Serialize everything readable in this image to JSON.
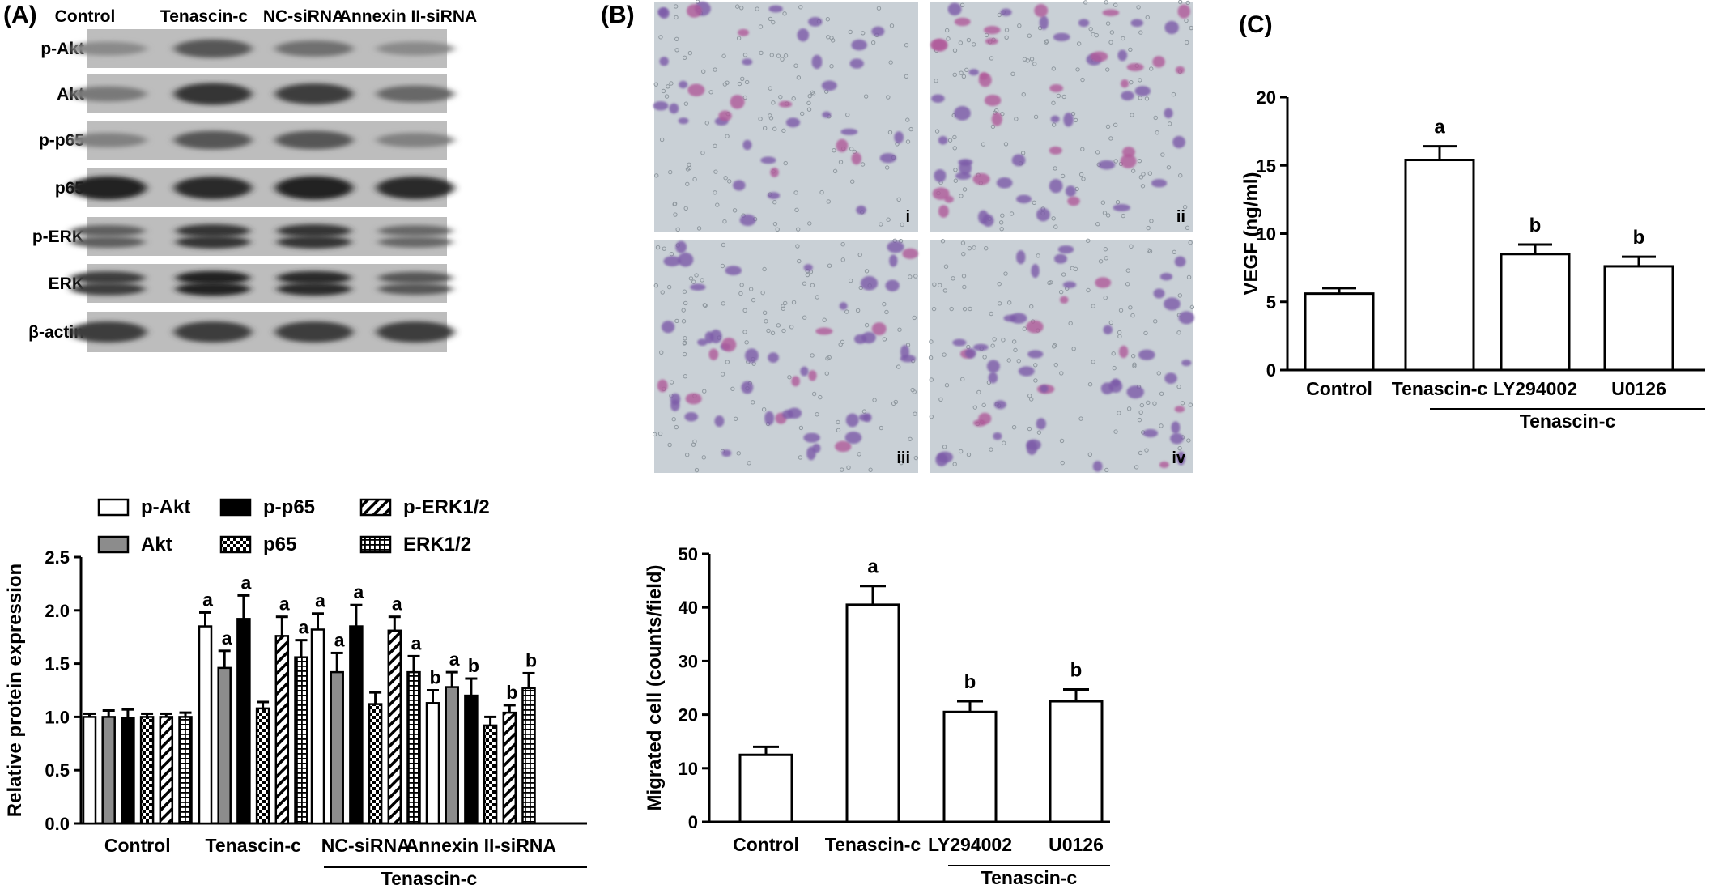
{
  "panels": {
    "A": "(A)",
    "B": "(B)",
    "C": "(C)"
  },
  "blot": {
    "lanes": [
      "Control",
      "Tenascin-c",
      "NC-siRNA",
      "Annexin II-siRNA"
    ],
    "rows": [
      {
        "label": "p-Akt",
        "intensity": [
          0.25,
          0.55,
          0.4,
          0.25
        ]
      },
      {
        "label": "Akt",
        "intensity": [
          0.35,
          0.75,
          0.7,
          0.45
        ]
      },
      {
        "label": "p-p65",
        "intensity": [
          0.3,
          0.55,
          0.55,
          0.3
        ]
      },
      {
        "label": "p65",
        "intensity": [
          0.85,
          0.8,
          0.85,
          0.8
        ]
      },
      {
        "label": "p-ERK",
        "intensity": [
          0.5,
          0.75,
          0.75,
          0.45
        ]
      },
      {
        "label": "ERK",
        "intensity": [
          0.7,
          0.85,
          0.8,
          0.55
        ]
      },
      {
        "label": "β-actin",
        "intensity": [
          0.7,
          0.7,
          0.7,
          0.7
        ]
      }
    ]
  },
  "micrographs": {
    "labels": [
      "i",
      "ii",
      "iii",
      "iv"
    ],
    "bg_color": "#c9d0d6",
    "stain_color": "#7c5aa8",
    "pink_color": "#b05a9a"
  },
  "chart_data": [
    {
      "id": "A-bar",
      "type": "bar",
      "categories": [
        "Control",
        "Tenascin-c",
        "NC-siRNA",
        "Annexin II-siRNA"
      ],
      "group_label": "Tenascin-c",
      "group_span": [
        1,
        3
      ],
      "series": [
        {
          "name": "p-Akt",
          "fill": "white",
          "values": [
            1.0,
            1.85,
            1.82,
            1.13
          ],
          "errors": [
            0.03,
            0.13,
            0.15,
            0.12
          ],
          "labels": [
            "",
            "a",
            "a",
            "b"
          ]
        },
        {
          "name": "Akt",
          "fill": "gray",
          "values": [
            1.0,
            1.46,
            1.42,
            1.28
          ],
          "errors": [
            0.06,
            0.16,
            0.18,
            0.14
          ],
          "labels": [
            "",
            "a",
            "a",
            "a"
          ]
        },
        {
          "name": "p-p65",
          "fill": "black",
          "values": [
            0.99,
            1.92,
            1.85,
            1.2
          ],
          "errors": [
            0.08,
            0.22,
            0.2,
            0.16
          ],
          "labels": [
            "",
            "a",
            "a",
            "b"
          ]
        },
        {
          "name": "p65",
          "fill": "checker",
          "values": [
            1.0,
            1.08,
            1.12,
            0.92
          ],
          "errors": [
            0.03,
            0.06,
            0.11,
            0.08
          ],
          "labels": [
            "",
            "",
            "",
            ""
          ]
        },
        {
          "name": "p-ERK1/2",
          "fill": "diagonal",
          "values": [
            1.0,
            1.76,
            1.81,
            1.04
          ],
          "errors": [
            0.03,
            0.18,
            0.13,
            0.07
          ],
          "labels": [
            "",
            "a",
            "a",
            "b"
          ]
        },
        {
          "name": "ERK1/2",
          "fill": "grid",
          "values": [
            1.0,
            1.56,
            1.42,
            1.27
          ],
          "errors": [
            0.04,
            0.16,
            0.15,
            0.14
          ],
          "labels": [
            "",
            "a",
            "a",
            "b"
          ]
        }
      ],
      "ylabel": "Relative protein expression",
      "ylim": [
        0,
        2.5
      ],
      "yticks": [
        "0.0",
        "0.5",
        "1.0",
        "1.5",
        "2.0",
        "2.5"
      ],
      "legend_position": "top"
    },
    {
      "id": "B-bar",
      "type": "bar",
      "categories": [
        "Control",
        "Tenascin-c",
        "LY294002",
        "U0126"
      ],
      "group_label": "Tenascin-c",
      "group_span": [
        2,
        3
      ],
      "values": [
        12.5,
        40.5,
        20.5,
        22.5
      ],
      "errors": [
        1.5,
        3.5,
        2.0,
        2.2
      ],
      "labels": [
        "",
        "a",
        "b",
        "b"
      ],
      "ylabel": "Migrated cell (counts/field)",
      "ylim": [
        0,
        50
      ],
      "yticks": [
        "0",
        "10",
        "20",
        "30",
        "40",
        "50"
      ]
    },
    {
      "id": "C-bar",
      "type": "bar",
      "categories": [
        "Control",
        "Tenascin-c",
        "LY294002",
        "U0126"
      ],
      "group_label": "Tenascin-c",
      "group_span": [
        2,
        3
      ],
      "values": [
        5.6,
        15.4,
        8.5,
        7.6
      ],
      "errors": [
        0.4,
        1.0,
        0.7,
        0.7
      ],
      "labels": [
        "",
        "a",
        "b",
        "b"
      ],
      "ylabel": "VEGF (ng/ml)",
      "ylim": [
        0,
        20
      ],
      "yticks": [
        "0",
        "5",
        "10",
        "15",
        "20"
      ]
    }
  ]
}
